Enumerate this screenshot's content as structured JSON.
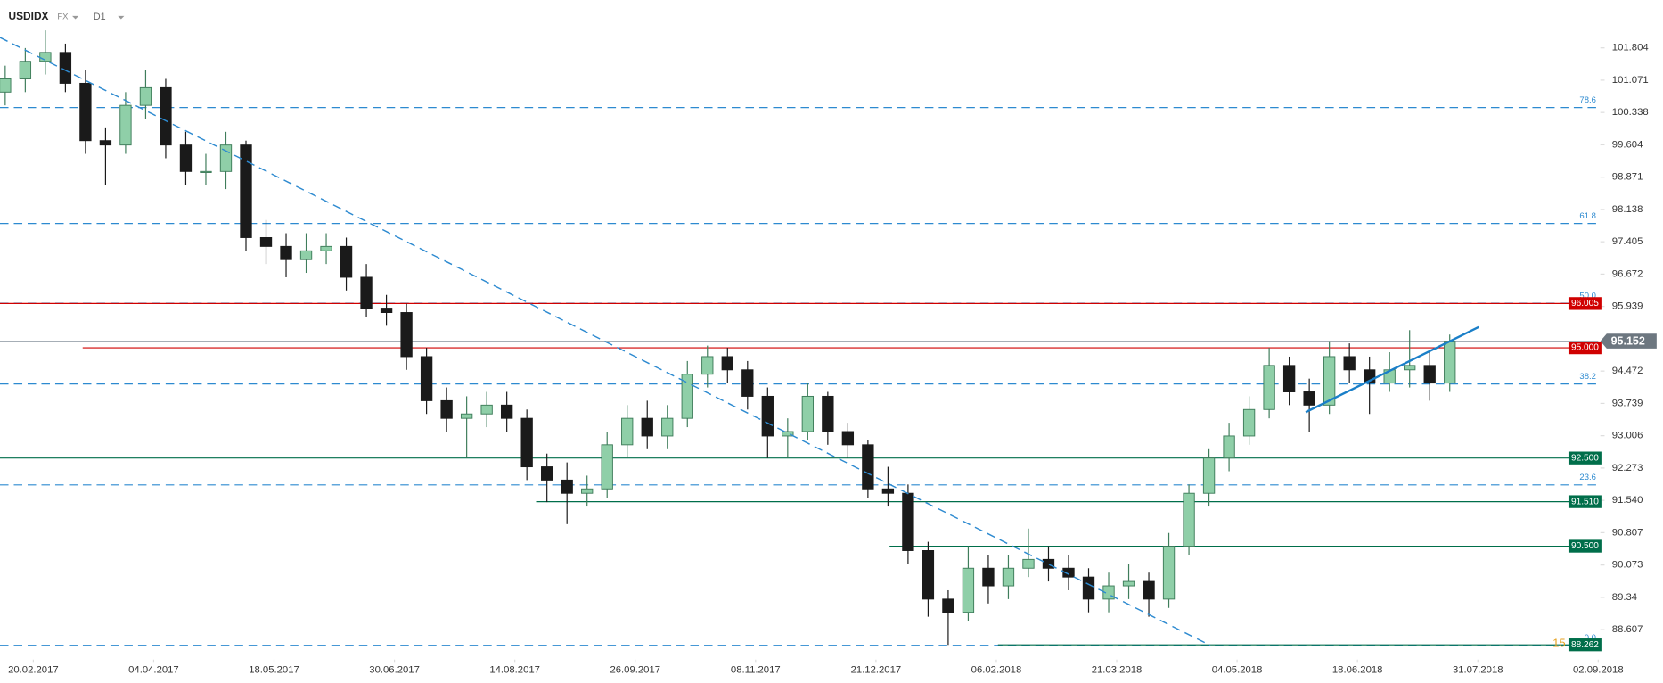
{
  "header": {
    "symbol": "USDIDX",
    "market": "FX",
    "interval": "D1"
  },
  "chart_data": {
    "type": "candlestick",
    "x": [
      0,
      5,
      10,
      15,
      20,
      25,
      30,
      35,
      40,
      45,
      50,
      55,
      60,
      65,
      70,
      75,
      80,
      85,
      90,
      95,
      100,
      105,
      110,
      115,
      120,
      125,
      130,
      135,
      140,
      145,
      150,
      155,
      160,
      165,
      170,
      175,
      180,
      185,
      190,
      195,
      200,
      205,
      210,
      215,
      220,
      225,
      230,
      235,
      240,
      245,
      250,
      255,
      260,
      265,
      270,
      275,
      280,
      285,
      290,
      295,
      300,
      305,
      310,
      315,
      320,
      325,
      330,
      335,
      340,
      345,
      350,
      355,
      360
    ],
    "candles": {
      "open": [
        100.8,
        101.1,
        101.5,
        101.7,
        101.0,
        99.7,
        99.6,
        100.5,
        100.9,
        99.6,
        99.0,
        99.0,
        99.6,
        97.5,
        97.3,
        97.0,
        97.2,
        97.3,
        96.6,
        95.9,
        95.8,
        94.8,
        93.8,
        93.4,
        93.5,
        93.7,
        93.4,
        92.3,
        92.0,
        91.7,
        91.8,
        92.8,
        93.4,
        93.0,
        93.4,
        94.4,
        94.8,
        94.5,
        93.9,
        93.0,
        93.1,
        93.9,
        93.1,
        92.8,
        91.8,
        91.7,
        90.4,
        89.3,
        89.0,
        90.0,
        89.6,
        90.0,
        90.2,
        90.0,
        89.8,
        89.3,
        89.6,
        89.7,
        89.3,
        90.5,
        91.7,
        92.5,
        93.0,
        93.6,
        94.6,
        94.0,
        93.7,
        94.8,
        94.5,
        94.2,
        94.5,
        94.6,
        94.2
      ],
      "high": [
        101.4,
        101.8,
        102.2,
        101.9,
        101.3,
        100.0,
        100.8,
        101.3,
        101.1,
        99.9,
        99.4,
        99.9,
        99.7,
        97.9,
        97.6,
        97.6,
        97.6,
        97.5,
        96.9,
        96.2,
        96.0,
        95.0,
        94.1,
        93.9,
        94.0,
        94.0,
        93.6,
        92.6,
        92.4,
        92.1,
        93.1,
        93.7,
        93.8,
        93.7,
        94.7,
        95.05,
        95.0,
        94.7,
        94.1,
        93.4,
        94.2,
        94.0,
        93.3,
        92.9,
        92.3,
        91.9,
        90.6,
        89.5,
        90.5,
        90.3,
        90.3,
        90.9,
        90.5,
        90.3,
        90.0,
        89.9,
        90.1,
        89.9,
        90.8,
        91.9,
        92.7,
        93.3,
        93.9,
        95.0,
        94.8,
        94.3,
        95.15,
        95.1,
        94.8,
        94.9,
        95.4,
        94.9,
        95.3
      ],
      "low": [
        100.5,
        100.8,
        101.2,
        100.8,
        99.4,
        98.7,
        99.4,
        100.2,
        99.3,
        98.7,
        98.7,
        98.6,
        97.2,
        96.9,
        96.6,
        96.7,
        96.9,
        96.3,
        95.7,
        95.5,
        94.5,
        93.5,
        93.1,
        92.5,
        93.2,
        93.1,
        92.0,
        91.5,
        91.0,
        91.4,
        91.6,
        92.5,
        92.7,
        92.7,
        93.2,
        94.1,
        94.2,
        93.6,
        92.5,
        92.5,
        92.9,
        92.8,
        92.5,
        91.6,
        91.4,
        90.1,
        88.9,
        88.26,
        88.8,
        89.2,
        89.3,
        89.8,
        89.7,
        89.5,
        89.0,
        89.0,
        89.3,
        88.9,
        89.1,
        90.3,
        91.4,
        92.2,
        92.8,
        93.4,
        93.7,
        93.1,
        93.5,
        94.2,
        93.5,
        94.0,
        94.1,
        93.8,
        94.0
      ],
      "close": [
        101.1,
        101.5,
        101.7,
        101.0,
        99.7,
        99.6,
        100.5,
        100.9,
        99.6,
        99.0,
        99.0,
        99.6,
        97.5,
        97.3,
        97.0,
        97.2,
        97.3,
        96.6,
        95.9,
        95.8,
        94.8,
        93.8,
        93.4,
        93.5,
        93.7,
        93.4,
        92.3,
        92.0,
        91.7,
        91.8,
        92.8,
        93.4,
        93.0,
        93.4,
        94.4,
        94.8,
        94.5,
        93.9,
        93.0,
        93.1,
        93.9,
        93.1,
        92.8,
        91.8,
        91.7,
        90.4,
        89.3,
        89.0,
        90.0,
        89.6,
        90.0,
        90.2,
        90.0,
        89.8,
        89.3,
        89.6,
        89.7,
        89.3,
        90.5,
        91.7,
        92.5,
        93.0,
        93.6,
        94.6,
        94.0,
        93.7,
        94.8,
        94.5,
        94.2,
        94.5,
        94.6,
        94.2,
        95.15
      ]
    },
    "up_color": "#8fcfa8",
    "up_edge": "#3f7d5b",
    "down_color": "#1a1a1a",
    "xlim": [
      -1.3,
      397
    ],
    "xticks": [
      {
        "value": 7,
        "label": "20.02.2017"
      },
      {
        "value": 37,
        "label": "04.04.2017"
      },
      {
        "value": 67,
        "label": "18.05.2017"
      },
      {
        "value": 97,
        "label": "30.06.2017"
      },
      {
        "value": 127,
        "label": "14.08.2017"
      },
      {
        "value": 157,
        "label": "26.09.2017"
      },
      {
        "value": 187,
        "label": "08.11.2017"
      },
      {
        "value": 217,
        "label": "21.12.2017"
      },
      {
        "value": 247,
        "label": "06.02.2018"
      },
      {
        "value": 277,
        "label": "21.03.2018"
      },
      {
        "value": 307,
        "label": "04.05.2018"
      },
      {
        "value": 337,
        "label": "18.06.2018"
      },
      {
        "value": 367,
        "label": "31.07.2018"
      },
      {
        "value": 397,
        "label": "02.09.2018"
      }
    ],
    "ylim": [
      88.12,
      102.89
    ],
    "yticks": [
      101.804,
      101.071,
      100.338,
      99.604,
      98.871,
      98.138,
      97.405,
      96.672,
      95.939,
      94.472,
      93.739,
      93.006,
      92.273,
      {
        "value": 91.54,
        "label": "91.540"
      },
      90.807,
      90.073,
      89.34,
      {
        "value": 88.607,
        "label": "88.607"
      }
    ],
    "fib_levels": [
      {
        "price": 100.45,
        "label": "78.6"
      },
      {
        "price": 97.82,
        "label": "61.8"
      },
      {
        "price": 96.01,
        "label": "50.0"
      },
      {
        "price": 94.18,
        "label": "38.2"
      },
      {
        "price": 91.89,
        "label": "23.6"
      },
      {
        "price": 88.25,
        "label": "0.0"
      }
    ],
    "fib_color": "#2d8ad0",
    "levels": [
      {
        "price": 96.005,
        "label": "96.005",
        "color": "#d00000",
        "from_x": -1.3
      },
      {
        "price": 95.0,
        "label": "95.000",
        "color": "#d00000",
        "from_x": 19.3
      },
      {
        "price": 92.5,
        "label": "92.500",
        "color": "#006e4a",
        "from_x": -1.3
      },
      {
        "price": 91.51,
        "label": "91.510",
        "color": "#006e4a",
        "from_x": 132.3
      },
      {
        "price": 90.5,
        "label": "90.500",
        "color": "#006e4a",
        "from_x": 220.4
      },
      {
        "price": 88.262,
        "label": "88.262",
        "color": "#006e4a",
        "from_x": 247.4
      }
    ],
    "current_price": {
      "price": 95.152,
      "label": "95.152",
      "color": "#6d7780"
    },
    "trendlines": [
      {
        "x": [
          -1.3,
          300.3
        ],
        "y": [
          102.04,
          88.25
        ],
        "dashed": true,
        "color": "#2d8ad0"
      },
      {
        "x": [
          324.1,
          367.2
        ],
        "y": [
          93.54,
          95.47
        ],
        "dashed": false,
        "color": "#1a7fc8"
      }
    ],
    "countdown": "15"
  }
}
